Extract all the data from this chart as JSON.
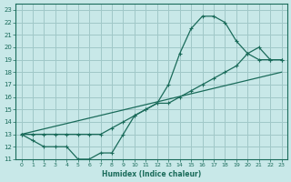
{
  "xlabel": "Humidex (Indice chaleur)",
  "bg_color": "#c8e8e8",
  "grid_color": "#a0c8c8",
  "line_color": "#1a6b5a",
  "xlim": [
    -0.5,
    23.5
  ],
  "ylim": [
    11,
    23.5
  ],
  "xticks": [
    0,
    1,
    2,
    3,
    4,
    5,
    6,
    7,
    8,
    9,
    10,
    11,
    12,
    13,
    14,
    15,
    16,
    17,
    18,
    19,
    20,
    21,
    22,
    23
  ],
  "yticks": [
    11,
    12,
    13,
    14,
    15,
    16,
    17,
    18,
    19,
    20,
    21,
    22,
    23
  ],
  "line1_x": [
    0,
    1,
    2,
    3,
    4,
    5,
    6,
    7,
    8,
    9,
    10,
    11,
    12,
    13,
    14,
    15,
    16,
    17,
    18,
    19,
    20,
    21,
    22,
    23
  ],
  "line1_y": [
    13.0,
    12.5,
    12.0,
    12.0,
    12.0,
    11.0,
    11.0,
    11.5,
    11.5,
    13.0,
    14.5,
    15.0,
    15.5,
    17.0,
    19.5,
    21.5,
    22.5,
    22.5,
    22.0,
    20.5,
    19.5,
    19.0,
    19.0,
    19.0
  ],
  "line2_x": [
    0,
    23
  ],
  "line2_y": [
    13.0,
    18.0
  ],
  "line3_x": [
    0,
    1,
    2,
    3,
    4,
    5,
    6,
    7,
    8,
    9,
    10,
    11,
    12,
    13,
    14,
    15,
    16,
    17,
    18,
    19,
    20,
    21,
    22,
    23
  ],
  "line3_y": [
    13.0,
    13.0,
    13.0,
    13.0,
    13.0,
    13.0,
    13.0,
    13.0,
    13.5,
    14.0,
    14.5,
    15.0,
    15.5,
    15.5,
    16.0,
    16.5,
    17.0,
    17.5,
    18.0,
    18.5,
    19.5,
    20.0,
    19.0,
    19.0
  ]
}
